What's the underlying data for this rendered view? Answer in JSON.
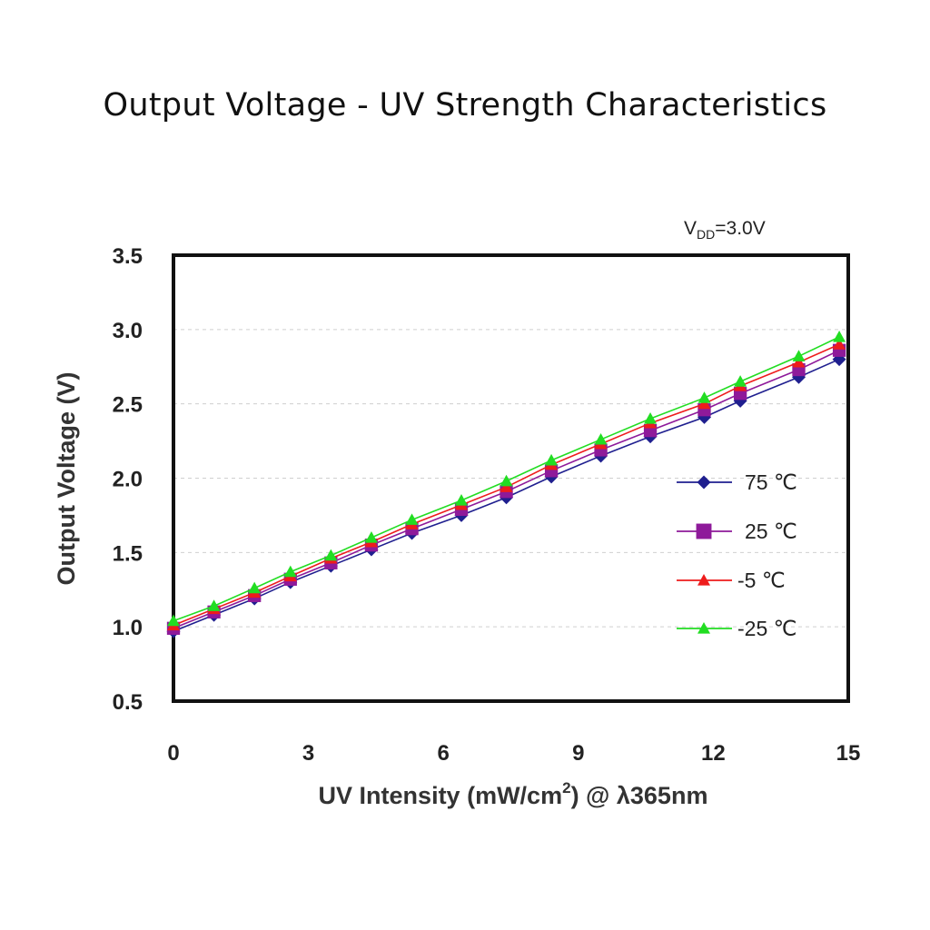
{
  "title": "Output Voltage - UV Strength Characteristics",
  "chart_data": {
    "type": "line",
    "annotation": {
      "main": "V",
      "sub": "DD",
      "rest": "=3.0V"
    },
    "xlabel": {
      "prefix": "UV Intensity (mW/cm",
      "sup": "2",
      "suffix": ") @ λ365nm"
    },
    "ylabel": "Output Voltage (V)",
    "xlim": [
      0,
      15
    ],
    "ylim": [
      0.5,
      3.5
    ],
    "xticks": [
      "0",
      "3",
      "6",
      "9",
      "12",
      "15"
    ],
    "yticks": [
      "0.5",
      "1.0",
      "1.5",
      "2.0",
      "2.5",
      "3.0",
      "3.5"
    ],
    "grid": "horizontal dashed",
    "legend_position": "right",
    "x": [
      0,
      0.9,
      1.8,
      2.6,
      3.5,
      4.4,
      5.3,
      6.4,
      7.4,
      8.4,
      9.5,
      10.6,
      11.8,
      12.6,
      13.9,
      14.8
    ],
    "series": [
      {
        "name": "75 ℃",
        "color": "#1f1f8f",
        "marker": "diamond",
        "values": [
          0.97,
          1.08,
          1.19,
          1.3,
          1.41,
          1.52,
          1.63,
          1.75,
          1.87,
          2.01,
          2.15,
          2.28,
          2.41,
          2.52,
          2.68,
          2.8
        ]
      },
      {
        "name": "25 ℃",
        "color": "#8e1a9a",
        "marker": "square",
        "values": [
          0.99,
          1.1,
          1.21,
          1.32,
          1.43,
          1.55,
          1.66,
          1.79,
          1.91,
          2.05,
          2.19,
          2.32,
          2.46,
          2.57,
          2.73,
          2.86
        ]
      },
      {
        "name": "-5 ℃",
        "color": "#ee1c1c",
        "marker": "triangle",
        "values": [
          1.01,
          1.12,
          1.23,
          1.34,
          1.46,
          1.57,
          1.69,
          1.82,
          1.94,
          2.09,
          2.23,
          2.37,
          2.5,
          2.62,
          2.78,
          2.9
        ]
      },
      {
        "name": "-25 ℃",
        "color": "#22dd22",
        "marker": "triangle",
        "values": [
          1.04,
          1.14,
          1.26,
          1.37,
          1.48,
          1.6,
          1.72,
          1.85,
          1.98,
          2.12,
          2.26,
          2.4,
          2.54,
          2.65,
          2.82,
          2.95
        ]
      }
    ]
  }
}
